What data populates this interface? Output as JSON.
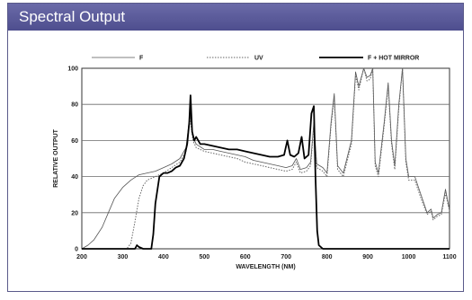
{
  "header": {
    "title": "Spectral Output"
  },
  "colors": {
    "title_bar": "#56569a",
    "frame": "#5a5a8a",
    "grid": "#6a6a6a"
  },
  "chart_data": {
    "type": "line",
    "xlabel": "WAVELENGTH (NM)",
    "ylabel": "RELATIVE OUTPUT",
    "xlim": [
      200,
      1100
    ],
    "ylim": [
      0,
      100
    ],
    "xticks": [
      200,
      300,
      400,
      500,
      600,
      700,
      800,
      900,
      1000,
      1100
    ],
    "yticks": [
      0,
      20,
      40,
      60,
      80,
      100
    ],
    "grid": "horizontal",
    "legend_position": "top",
    "series": [
      {
        "name": "F",
        "style": "thin-solid",
        "points": [
          [
            200,
            0
          ],
          [
            215,
            2
          ],
          [
            230,
            5
          ],
          [
            250,
            12
          ],
          [
            265,
            20
          ],
          [
            280,
            28
          ],
          [
            300,
            34
          ],
          [
            320,
            38
          ],
          [
            340,
            41
          ],
          [
            360,
            42
          ],
          [
            380,
            43
          ],
          [
            400,
            45
          ],
          [
            420,
            47
          ],
          [
            440,
            50
          ],
          [
            455,
            56
          ],
          [
            465,
            75
          ],
          [
            472,
            62
          ],
          [
            480,
            58
          ],
          [
            500,
            55
          ],
          [
            520,
            55
          ],
          [
            540,
            54
          ],
          [
            560,
            53
          ],
          [
            580,
            52
          ],
          [
            600,
            51
          ],
          [
            620,
            49
          ],
          [
            640,
            48
          ],
          [
            660,
            47
          ],
          [
            680,
            46
          ],
          [
            700,
            45
          ],
          [
            715,
            46
          ],
          [
            725,
            50
          ],
          [
            735,
            44
          ],
          [
            750,
            45
          ],
          [
            760,
            48
          ],
          [
            768,
            70
          ],
          [
            775,
            47
          ],
          [
            790,
            45
          ],
          [
            800,
            42
          ],
          [
            810,
            70
          ],
          [
            818,
            86
          ],
          [
            826,
            46
          ],
          [
            840,
            42
          ],
          [
            860,
            60
          ],
          [
            870,
            98
          ],
          [
            878,
            90
          ],
          [
            890,
            100
          ],
          [
            898,
            95
          ],
          [
            906,
            96
          ],
          [
            912,
            100
          ],
          [
            918,
            48
          ],
          [
            926,
            42
          ],
          [
            940,
            70
          ],
          [
            950,
            92
          ],
          [
            958,
            60
          ],
          [
            966,
            46
          ],
          [
            976,
            80
          ],
          [
            985,
            100
          ],
          [
            993,
            50
          ],
          [
            1000,
            40
          ],
          [
            1015,
            40
          ],
          [
            1030,
            30
          ],
          [
            1045,
            20
          ],
          [
            1055,
            22
          ],
          [
            1060,
            17
          ],
          [
            1070,
            19
          ],
          [
            1080,
            20
          ],
          [
            1090,
            33
          ],
          [
            1097,
            25
          ],
          [
            1100,
            22
          ]
        ]
      },
      {
        "name": "UV",
        "style": "dotted",
        "points": [
          [
            200,
            0
          ],
          [
            310,
            0
          ],
          [
            320,
            3
          ],
          [
            330,
            15
          ],
          [
            340,
            28
          ],
          [
            350,
            35
          ],
          [
            360,
            38
          ],
          [
            380,
            40
          ],
          [
            400,
            42
          ],
          [
            420,
            45
          ],
          [
            440,
            48
          ],
          [
            455,
            54
          ],
          [
            465,
            72
          ],
          [
            472,
            60
          ],
          [
            480,
            56
          ],
          [
            500,
            54
          ],
          [
            520,
            53
          ],
          [
            540,
            52
          ],
          [
            560,
            51
          ],
          [
            580,
            50
          ],
          [
            600,
            48
          ],
          [
            620,
            47
          ],
          [
            640,
            46
          ],
          [
            660,
            45
          ],
          [
            680,
            44
          ],
          [
            700,
            43
          ],
          [
            715,
            44
          ],
          [
            725,
            48
          ],
          [
            735,
            42
          ],
          [
            750,
            43
          ],
          [
            760,
            46
          ],
          [
            768,
            68
          ],
          [
            775,
            45
          ],
          [
            790,
            43
          ],
          [
            800,
            40
          ],
          [
            810,
            68
          ],
          [
            818,
            84
          ],
          [
            826,
            44
          ],
          [
            840,
            40
          ],
          [
            860,
            58
          ],
          [
            870,
            96
          ],
          [
            878,
            88
          ],
          [
            890,
            100
          ],
          [
            898,
            93
          ],
          [
            906,
            94
          ],
          [
            912,
            100
          ],
          [
            918,
            46
          ],
          [
            926,
            40
          ],
          [
            940,
            68
          ],
          [
            950,
            90
          ],
          [
            958,
            58
          ],
          [
            966,
            44
          ],
          [
            976,
            78
          ],
          [
            985,
            100
          ],
          [
            993,
            48
          ],
          [
            1000,
            38
          ],
          [
            1015,
            38
          ],
          [
            1030,
            28
          ],
          [
            1045,
            19
          ],
          [
            1055,
            21
          ],
          [
            1060,
            16
          ],
          [
            1070,
            18
          ],
          [
            1080,
            19
          ],
          [
            1090,
            31
          ],
          [
            1097,
            24
          ],
          [
            1100,
            21
          ]
        ]
      },
      {
        "name": "F + HOT MIRROR",
        "style": "thick-solid",
        "points": [
          [
            200,
            0
          ],
          [
            330,
            0
          ],
          [
            335,
            2
          ],
          [
            340,
            1
          ],
          [
            350,
            0
          ],
          [
            370,
            0
          ],
          [
            375,
            8
          ],
          [
            380,
            25
          ],
          [
            390,
            40
          ],
          [
            400,
            42
          ],
          [
            410,
            42
          ],
          [
            420,
            43
          ],
          [
            430,
            45
          ],
          [
            440,
            46
          ],
          [
            450,
            50
          ],
          [
            458,
            58
          ],
          [
            463,
            70
          ],
          [
            466,
            85
          ],
          [
            470,
            65
          ],
          [
            475,
            60
          ],
          [
            480,
            62
          ],
          [
            490,
            58
          ],
          [
            500,
            58
          ],
          [
            520,
            57
          ],
          [
            540,
            56
          ],
          [
            560,
            55
          ],
          [
            580,
            55
          ],
          [
            600,
            54
          ],
          [
            620,
            53
          ],
          [
            640,
            52
          ],
          [
            660,
            51
          ],
          [
            680,
            51
          ],
          [
            695,
            52
          ],
          [
            703,
            60
          ],
          [
            710,
            52
          ],
          [
            720,
            51
          ],
          [
            730,
            53
          ],
          [
            738,
            62
          ],
          [
            745,
            50
          ],
          [
            755,
            52
          ],
          [
            762,
            75
          ],
          [
            768,
            79
          ],
          [
            772,
            40
          ],
          [
            776,
            10
          ],
          [
            780,
            2
          ],
          [
            790,
            0
          ],
          [
            1100,
            0
          ]
        ]
      }
    ]
  }
}
